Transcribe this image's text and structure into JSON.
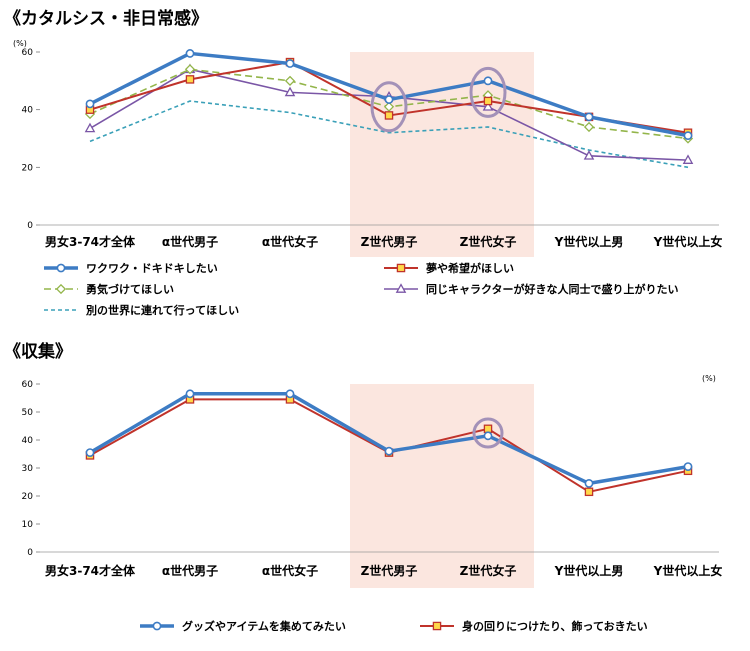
{
  "charts": [
    {
      "title": "《カタルシス・非日常感》",
      "unit": "(%)"
    },
    {
      "title": "《収集》",
      "unit": "(%)"
    }
  ],
  "chart_data": [
    {
      "type": "line",
      "title": "《カタルシス・非日常感》",
      "ylabel": "(%)",
      "ylim": [
        0,
        60
      ],
      "yticks": [
        0,
        20,
        40,
        60
      ],
      "categories": [
        "男女3-74才全体",
        "α世代男子",
        "α世代女子",
        "Z世代男子",
        "Z世代女子",
        "Y世代以上男",
        "Y世代以上女"
      ],
      "highlight_categories": [
        "Z世代男子",
        "Z世代女子"
      ],
      "circled_points": [
        {
          "category": "Z世代男子",
          "value": 41
        },
        {
          "category": "Z世代女子",
          "value": 46
        }
      ],
      "series": [
        {
          "name": "ワクワク・ドキドキしたい",
          "values": [
            42,
            59.5,
            56,
            43.5,
            50,
            37.5,
            31
          ],
          "color": "#3d7cc4",
          "marker": "circle",
          "dash": "none",
          "width": 3.5
        },
        {
          "name": "夢や希望がほしい",
          "values": [
            40,
            50.5,
            56.5,
            38,
            43,
            37.5,
            32
          ],
          "color": "#c0332b",
          "marker": "square",
          "dash": "none",
          "width": 2
        },
        {
          "name": "勇気づけてほしい",
          "values": [
            38.5,
            54,
            50,
            41,
            45,
            34,
            30
          ],
          "color": "#93b54a",
          "marker": "diamond",
          "dash": "7,4",
          "width": 1.6
        },
        {
          "name": "同じキャラクターが好きな人同士で盛り上がりたい",
          "values": [
            33.5,
            54,
            46,
            44.5,
            41,
            24,
            22.5
          ],
          "color": "#7a56a6",
          "marker": "triangle",
          "dash": "none",
          "width": 1.6
        },
        {
          "name": "別の世界に連れて行ってほしい",
          "values": [
            29,
            43,
            39,
            32,
            34,
            26,
            20
          ],
          "color": "#3aa0b8",
          "marker": "none",
          "dash": "4,3",
          "width": 1.6
        }
      ]
    },
    {
      "type": "line",
      "title": "《収集》",
      "ylabel": "(%)",
      "ylim": [
        0,
        60
      ],
      "yticks": [
        0,
        10,
        20,
        30,
        40,
        50,
        60
      ],
      "categories": [
        "男女3-74才全体",
        "α世代男子",
        "α世代女子",
        "Z世代男子",
        "Z世代女子",
        "Y世代以上男",
        "Y世代以上女"
      ],
      "highlight_categories": [
        "Z世代男子",
        "Z世代女子"
      ],
      "circled_points": [
        {
          "category": "Z世代女子",
          "value": 42.5
        }
      ],
      "series": [
        {
          "name": "グッズやアイテムを集めてみたい",
          "values": [
            35.5,
            56.5,
            56.5,
            36,
            41.5,
            24.5,
            30.5
          ],
          "color": "#3d7cc4",
          "marker": "circle",
          "dash": "none",
          "width": 3.5
        },
        {
          "name": "身の回りにつけたり、飾っておきたい",
          "values": [
            34.5,
            54.5,
            54.5,
            35.5,
            44,
            21.5,
            29
          ],
          "color": "#c0332b",
          "marker": "square",
          "dash": "none",
          "width": 2
        }
      ]
    }
  ]
}
